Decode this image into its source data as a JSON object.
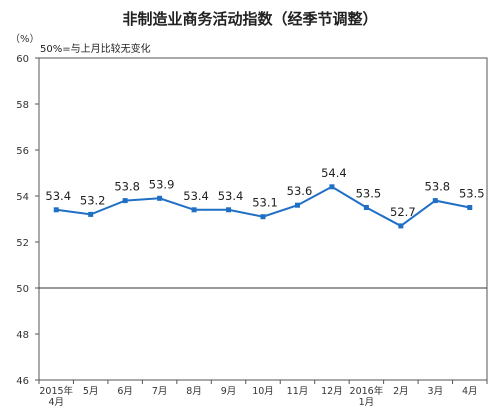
{
  "chart_data": {
    "type": "line",
    "title": "非制造业商务活动指数（经季节调整）",
    "unit_label": "（%）",
    "annotation": "50%=与上月比较无变化",
    "ylim": [
      46,
      60
    ],
    "yticks": [
      "46",
      "48",
      "50",
      "52",
      "54",
      "56",
      "58",
      "60"
    ],
    "reference_line": 50,
    "categories": [
      [
        "2015年",
        "4月"
      ],
      [
        "5月"
      ],
      [
        "6月"
      ],
      [
        "7月"
      ],
      [
        "8月"
      ],
      [
        "9月"
      ],
      [
        "10月"
      ],
      [
        "11月"
      ],
      [
        "12月"
      ],
      [
        "2016年",
        "1月"
      ],
      [
        "2月"
      ],
      [
        "3月"
      ],
      [
        "4月"
      ]
    ],
    "series": [
      {
        "color": "#1f6fc5",
        "values": [
          53.4,
          53.2,
          53.8,
          53.9,
          53.4,
          53.4,
          53.1,
          53.6,
          54.4,
          53.5,
          52.7,
          53.8,
          53.5
        ],
        "labels": [
          "53.4",
          "53.2",
          "53.8",
          "53.9",
          "53.4",
          "53.4",
          "53.1",
          "53.6",
          "54.4",
          "53.5",
          "52.7",
          "53.8",
          "53.5"
        ]
      }
    ],
    "grid": false,
    "legend": "none"
  }
}
